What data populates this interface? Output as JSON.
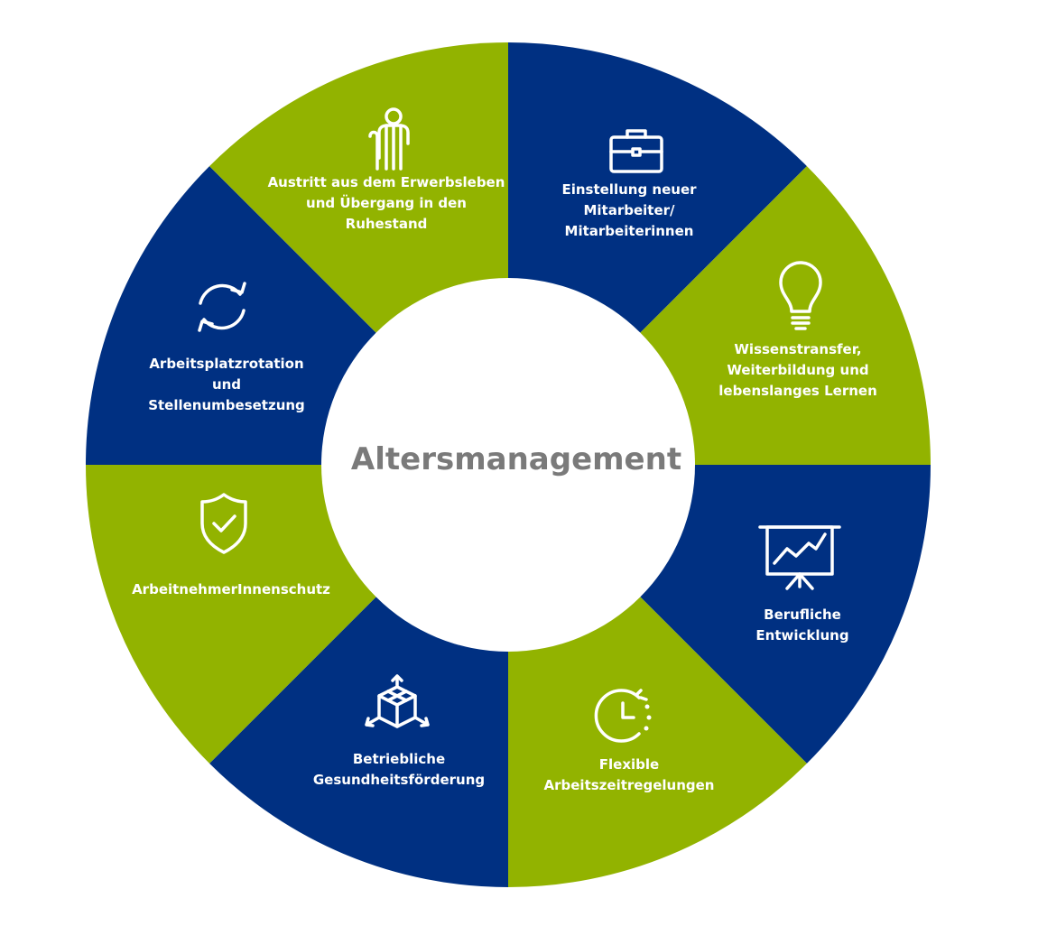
{
  "diagram": {
    "center_title": "Altersmanagement",
    "colors": {
      "blue": "#003082",
      "green": "#92b300",
      "center": "#ffffff",
      "title": "#7a7a7a"
    },
    "segments": [
      {
        "color": "blue",
        "icon": "briefcase-icon",
        "lines": [
          "Einstellung neuer",
          "Mitarbeiter/",
          "Mitarbeiterinnen"
        ]
      },
      {
        "color": "green",
        "icon": "lightbulb-icon",
        "lines": [
          "Wissenstransfer,",
          "Weiterbildung und",
          "lebenslanges Lernen"
        ]
      },
      {
        "color": "blue",
        "icon": "presentation-chart-icon",
        "lines": [
          "Berufliche",
          "Entwicklung"
        ]
      },
      {
        "color": "green",
        "icon": "clock-icon",
        "lines": [
          "Flexible",
          "Arbeitszeitregelungen"
        ]
      },
      {
        "color": "blue",
        "icon": "cube-arrows-icon",
        "lines": [
          "Betriebliche",
          "Gesundheitsförderung"
        ]
      },
      {
        "color": "green",
        "icon": "shield-check-icon",
        "lines": [
          "ArbeitnehmerInnenschutz"
        ]
      },
      {
        "color": "blue",
        "icon": "rotation-arrows-icon",
        "lines": [
          "Arbeitsplatzrotation",
          "und",
          "Stellenumbesetzung"
        ]
      },
      {
        "color": "green",
        "icon": "elderly-person-icon",
        "lines": [
          "Austritt aus dem Erwerbsleben",
          "und Übergang in den",
          "Ruhestand"
        ]
      }
    ]
  }
}
